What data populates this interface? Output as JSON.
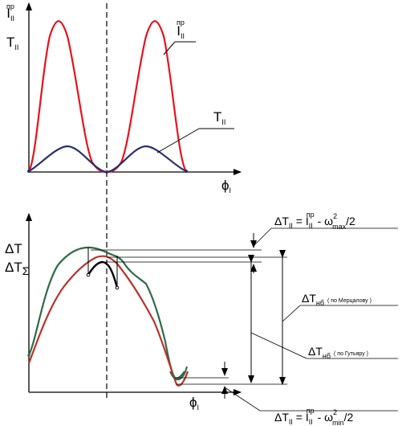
{
  "top_plot": {
    "y_label_1": "I",
    "y_label_1_sub": "II",
    "y_label_1_sup": "пр",
    "y_label_2": "T",
    "y_label_2_sub": "II",
    "x_label": "ϕ",
    "x_label_sub": "I",
    "curve_label_red": "I",
    "curve_label_red_sub": "II",
    "curve_label_red_sup": "пр",
    "curve_label_blue": "T",
    "curve_label_blue_sub": "II"
  },
  "bottom_plot": {
    "y_label_1": "ΔT",
    "y_label_2": "ΔT",
    "y_label_2_sub": "Σ",
    "x_label": "ϕ",
    "x_label_sub": "I",
    "ann_top": {
      "a": "ΔT",
      "a_sub": "II",
      "b": " = I",
      "b_sub": "II",
      "b_sup": "пр",
      "c": " -  ω",
      "c_sup": "2",
      "c_sub": "max",
      "d": "/2"
    },
    "ann_merc": {
      "a": "ΔT",
      "a_sub": "нб",
      "note": "( по Мерцалову )"
    },
    "ann_gut": {
      "a": "ΔT",
      "a_sub": "нб",
      "note": "( по Гутьяру )"
    },
    "ann_bottom": {
      "a": "ΔT",
      "a_sub": "II",
      "b": " = I",
      "b_sub": "II",
      "b_sup": "пр",
      "c": " -  ω",
      "c_sup": "2",
      "c_sub": "min",
      "d": "/2"
    }
  },
  "colors": {
    "red": "#e8121c",
    "navy": "#2a2f6e",
    "green": "#2e6b45",
    "brown": "#b8332a",
    "black": "#000000"
  }
}
